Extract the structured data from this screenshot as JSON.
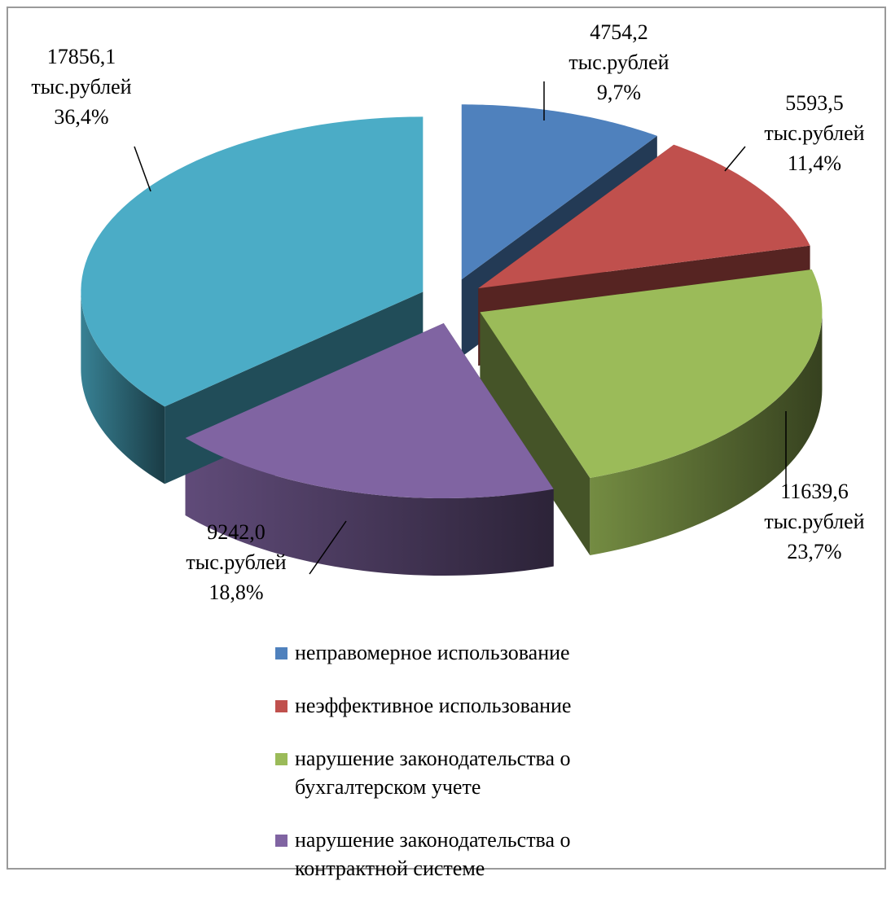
{
  "chart_data": {
    "type": "pie3d",
    "categories": [
      "неправомерное использование",
      "неэффективное использование",
      "нарушение законодательства о бухгалтерском учете",
      "нарушение законодательства о контрактной системе",
      null
    ],
    "series": [
      {
        "values": [
          4754.2,
          5593.5,
          11639.6,
          9242.0,
          17856.1
        ],
        "value_labels": [
          "4754,2",
          "5593,5",
          "11639,6",
          "9242,0",
          "17856,1"
        ],
        "percents": [
          9.7,
          11.4,
          23.7,
          18.8,
          36.4
        ],
        "percent_labels": [
          "9,7%",
          "11,4%",
          "23,7%",
          "18,8%",
          "36,4%"
        ],
        "colors": [
          "#4f81bd",
          "#c0504d",
          "#9bbb59",
          "#8064a2",
          "#4bacc6"
        ]
      }
    ],
    "unit": "тыс.рублей",
    "legend": "bottom"
  }
}
